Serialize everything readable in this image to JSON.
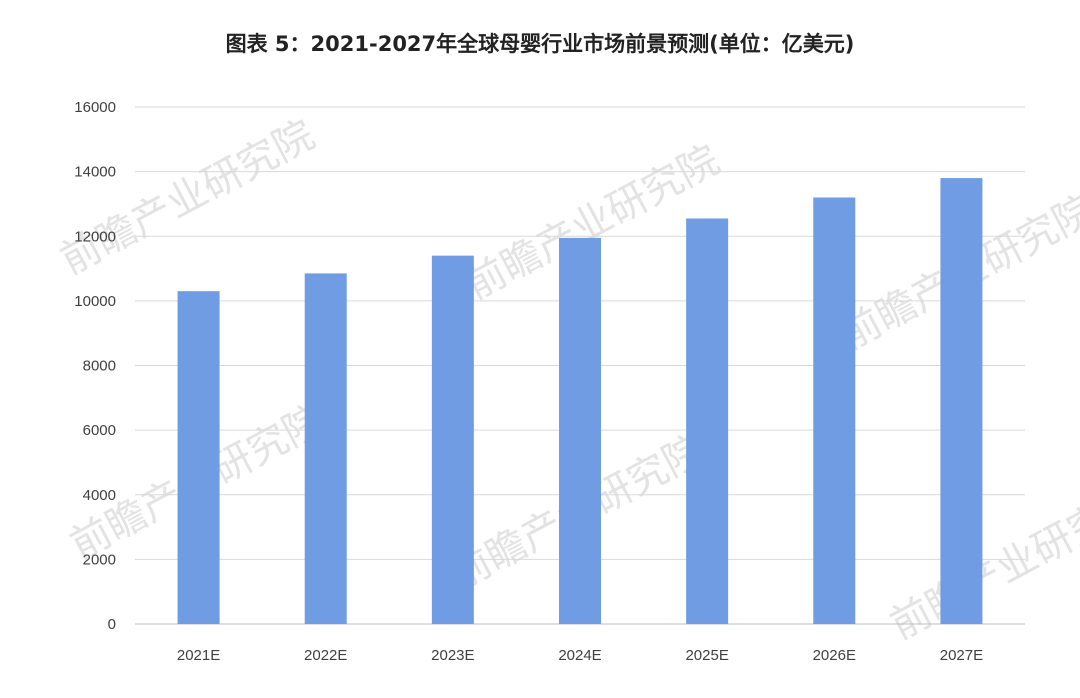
{
  "chart_data": {
    "type": "bar",
    "title": "图表 5：2021-2027年全球母婴行业市场前景预测(单位：亿美元)",
    "categories": [
      "2021E",
      "2022E",
      "2023E",
      "2024E",
      "2025E",
      "2026E",
      "2027E"
    ],
    "values": [
      10300,
      10850,
      11400,
      11950,
      12550,
      13200,
      13800
    ],
    "ylim": [
      0,
      16000
    ],
    "yticks": [
      0,
      2000,
      4000,
      6000,
      8000,
      10000,
      12000,
      14000,
      16000
    ],
    "grid": true,
    "bar_color": "#6f9ce3",
    "watermark": "前瞻产业研究院"
  }
}
